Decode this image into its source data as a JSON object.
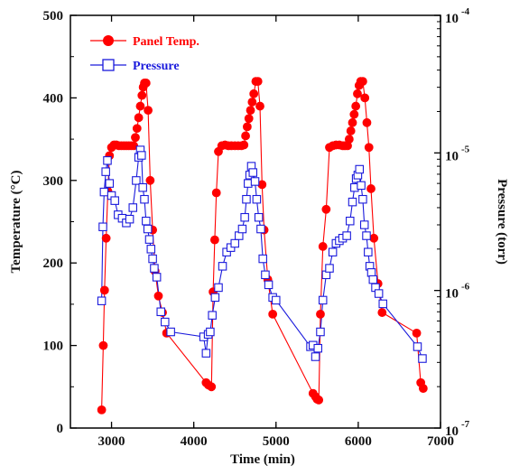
{
  "chart_data": {
    "type": "line",
    "xlabel": "Time (min)",
    "ylabel_left": "Temperature (°C)",
    "ylabel_right": "Pressure (torr)",
    "xlim": [
      2500,
      7000
    ],
    "xticks": [
      3000,
      4000,
      5000,
      6000,
      7000
    ],
    "ylim_left": [
      0,
      500
    ],
    "yticks_left": [
      0,
      100,
      200,
      300,
      400,
      500
    ],
    "ylim_right": [
      1e-07,
      0.0001
    ],
    "right_scale": "log",
    "yticks_right": [
      {
        "value": 1e-07,
        "base": "10",
        "exp": "-7"
      },
      {
        "value": 1e-06,
        "base": "10",
        "exp": "-6"
      },
      {
        "value": 1e-05,
        "base": "10",
        "exp": "-5"
      },
      {
        "value": 0.0001,
        "base": "10",
        "exp": "-4"
      }
    ],
    "legend_position": "top-left",
    "series": [
      {
        "name": "Panel Temp.",
        "axis": "left",
        "color": "#ff0000",
        "marker": "filled-circle",
        "x": [
          2880,
          2900,
          2915,
          2935,
          2955,
          2975,
          3000,
          3030,
          3060,
          3090,
          3120,
          3150,
          3180,
          3210,
          3240,
          3270,
          3290,
          3310,
          3330,
          3350,
          3370,
          3385,
          3400,
          3420,
          3445,
          3470,
          3500,
          3530,
          3570,
          3620,
          3670,
          4150,
          4180,
          4215,
          4235,
          4255,
          4275,
          4300,
          4340,
          4380,
          4420,
          4460,
          4500,
          4540,
          4580,
          4610,
          4630,
          4650,
          4670,
          4690,
          4710,
          4730,
          4755,
          4780,
          4805,
          4830,
          4855,
          4900,
          4960,
          5450,
          5480,
          5500,
          5520,
          5540,
          5570,
          5610,
          5650,
          5690,
          5730,
          5770,
          5810,
          5840,
          5870,
          5890,
          5910,
          5930,
          5950,
          5970,
          5990,
          6010,
          6030,
          6055,
          6080,
          6105,
          6130,
          6155,
          6190,
          6240,
          6290,
          6710,
          6760
        ],
        "y": [
          22,
          100,
          167,
          230,
          287,
          330,
          340,
          343,
          343,
          342,
          342,
          342,
          342,
          342,
          342,
          342,
          352,
          363,
          376,
          390,
          403,
          413,
          418,
          418,
          385,
          300,
          240,
          190,
          160,
          140,
          115,
          55,
          52,
          50,
          165,
          228,
          285,
          335,
          342,
          343,
          342,
          342,
          342,
          342,
          342,
          343,
          354,
          365,
          375,
          385,
          395,
          405,
          420,
          420,
          390,
          295,
          240,
          180,
          138,
          42,
          38,
          35,
          34,
          138,
          220,
          265,
          340,
          342,
          343,
          343,
          342,
          342,
          342,
          350,
          360,
          370,
          380,
          390,
          405,
          415,
          420,
          420,
          400,
          370,
          340,
          290,
          230,
          175,
          140,
          115,
          55
        ],
        "x2": [
          6790
        ],
        "y2": [
          48
        ]
      },
      {
        "name": "Pressure",
        "axis": "right",
        "color": "#1a1adc",
        "marker": "open-square",
        "x": [
          2880,
          2895,
          2910,
          2930,
          2950,
          2975,
          3000,
          3040,
          3080,
          3130,
          3180,
          3220,
          3260,
          3300,
          3330,
          3350,
          3365,
          3380,
          3400,
          3420,
          3440,
          3460,
          3480,
          3500,
          3520,
          3550,
          3600,
          3650,
          3720,
          4120,
          4150,
          4175,
          4200,
          4225,
          4260,
          4300,
          4350,
          4400,
          4450,
          4500,
          4550,
          4590,
          4620,
          4640,
          4660,
          4680,
          4700,
          4720,
          4745,
          4765,
          4790,
          4815,
          4840,
          4870,
          4910,
          4960,
          5000,
          5420,
          5450,
          5480,
          5510,
          5540,
          5570,
          5610,
          5650,
          5690,
          5730,
          5770,
          5810,
          5860,
          5900,
          5930,
          5955,
          5975,
          5995,
          6015,
          6035,
          6055,
          6075,
          6100,
          6120,
          6140,
          6160,
          6180,
          6210,
          6250,
          6300,
          6720,
          6780
        ],
        "y": [
          8.4e-07,
          2.9e-06,
          5.2e-06,
          7.3e-06,
          8.8e-06,
          6e-06,
          4.9e-06,
          4.5e-06,
          3.55e-06,
          3.35e-06,
          3.1e-06,
          3.3e-06,
          4e-06,
          6.3e-06,
          9.3e-06,
          1.05e-05,
          9.6e-06,
          5.6e-06,
          4.6e-06,
          3.2e-06,
          2.8e-06,
          2.35e-06,
          2e-06,
          1.7e-06,
          1.45e-06,
          1.25e-06,
          7e-07,
          5.9e-07,
          5e-07,
          4.6e-07,
          3.5e-07,
          4.8e-07,
          5e-07,
          6.6e-07,
          8.9e-07,
          1.05e-06,
          1.5e-06,
          1.9e-06,
          2.05e-06,
          2.2e-06,
          2.5e-06,
          2.8e-06,
          3.4e-06,
          4.6e-06,
          6e-06,
          6.9e-06,
          8e-06,
          7.2e-06,
          6.2e-06,
          4.6e-06,
          3.4e-06,
          2.8e-06,
          1.7e-06,
          1.3e-06,
          1.1e-06,
          8.9e-07,
          8.5e-07,
          3.9e-07,
          4e-07,
          3.3e-07,
          3.8e-07,
          5e-07,
          8.5e-07,
          1.3e-06,
          1.45e-06,
          1.9e-06,
          2.2e-06,
          2.3e-06,
          2.4e-06,
          2.5e-06,
          3.2e-06,
          4.4e-06,
          5.6e-06,
          6.5e-06,
          6.9e-06,
          7.6e-06,
          5.8e-06,
          4.6e-06,
          3e-06,
          2.5e-06,
          1.9e-06,
          1.5e-06,
          1.35e-06,
          1.2e-06,
          1.05e-06,
          9.5e-07,
          8e-07,
          3.9e-07,
          3.2e-07
        ]
      }
    ]
  }
}
